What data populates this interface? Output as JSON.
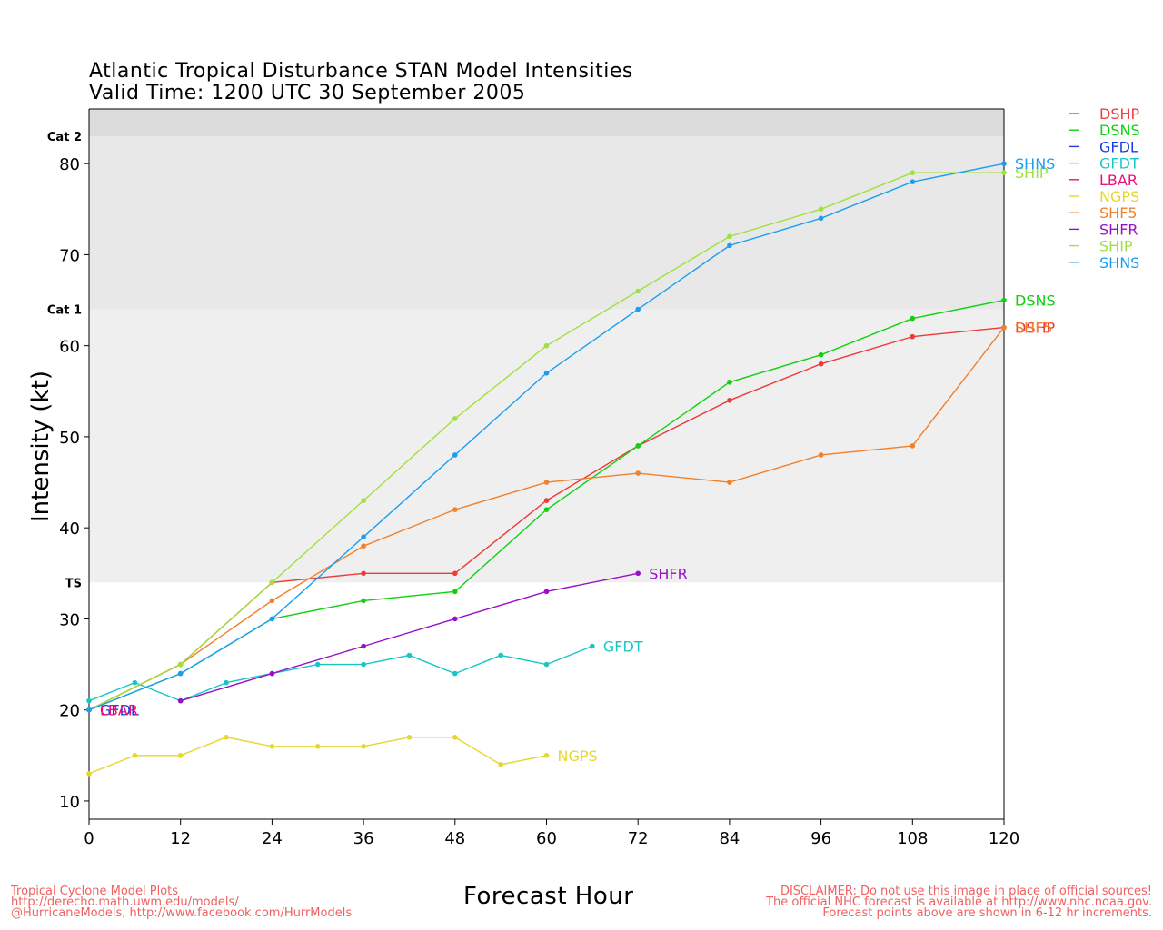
{
  "title_line1": "Atlantic Tropical Disturbance STAN Model Intensities",
  "title_line2": "Valid Time: 1200 UTC 30 September 2005",
  "footer_left": [
    "Tropical Cyclone Model Plots",
    "http://derecho.math.uwm.edu/models/",
    "@HurricaneModels, http://www.facebook.com/HurrModels"
  ],
  "footer_right": [
    "DISCLAIMER: Do not use this image in place of official sources!",
    "The official NHC forecast is available at http://www.nhc.noaa.gov.",
    "Forecast points above are shown in 6-12 hr increments."
  ],
  "chart_data": {
    "type": "line",
    "xlabel": "Forecast Hour",
    "ylabel": "Intensity (kt)",
    "xlim": [
      0,
      120
    ],
    "ylim": [
      8,
      86
    ],
    "xticks": [
      0,
      12,
      24,
      36,
      48,
      60,
      72,
      84,
      96,
      108,
      120
    ],
    "yticks": [
      10,
      20,
      30,
      40,
      50,
      60,
      70,
      80
    ],
    "bands": [
      {
        "label": "TS",
        "from": 34,
        "to": 64,
        "color": "#efefef"
      },
      {
        "label": "Cat 1",
        "from": 64,
        "to": 83,
        "color": "#e8e8e8"
      },
      {
        "label": "Cat 2",
        "from": 83,
        "to": 86,
        "color": "#dcdcdc"
      }
    ],
    "legend_position": "right, outside plot",
    "series": [
      {
        "name": "DSHP",
        "color": "#ee3a3a",
        "x": [
          0,
          12,
          24,
          36,
          48,
          60,
          72,
          84,
          96,
          108,
          120
        ],
        "y": [
          20,
          25,
          34,
          35,
          35,
          43,
          49,
          54,
          58,
          61,
          62
        ]
      },
      {
        "name": "DSNS",
        "color": "#10d010",
        "x": [
          0,
          12,
          24,
          36,
          48,
          60,
          72,
          84,
          96,
          108,
          120
        ],
        "y": [
          20,
          24,
          30,
          32,
          33,
          42,
          49,
          56,
          59,
          63,
          65
        ]
      },
      {
        "name": "GFDL",
        "color": "#1a3ee0",
        "x": [
          0
        ],
        "y": [
          20
        ]
      },
      {
        "name": "GFDT",
        "color": "#18c6c6",
        "x": [
          0,
          6,
          12,
          18,
          24,
          30,
          36,
          42,
          48,
          54,
          60,
          66
        ],
        "y": [
          21,
          23,
          21,
          23,
          24,
          25,
          25,
          26,
          24,
          26,
          25,
          27
        ]
      },
      {
        "name": "LBAR",
        "color": "#e8127a",
        "x": [
          0
        ],
        "y": [
          20
        ]
      },
      {
        "name": "NGPS",
        "color": "#e6d630",
        "x": [
          0,
          6,
          12,
          18,
          24,
          30,
          36,
          42,
          48,
          54,
          60
        ],
        "y": [
          13,
          15,
          15,
          17,
          16,
          16,
          16,
          17,
          17,
          14,
          15
        ]
      },
      {
        "name": "SHF5",
        "color": "#f0802a",
        "x": [
          0,
          12,
          24,
          36,
          48,
          60,
          72,
          84,
          96,
          108,
          120
        ],
        "y": [
          20,
          25,
          32,
          38,
          42,
          45,
          46,
          45,
          48,
          49,
          62
        ]
      },
      {
        "name": "SHFR",
        "color": "#9a10c8",
        "x": [
          12,
          24,
          36,
          48,
          60,
          72
        ],
        "y": [
          21,
          24,
          27,
          30,
          33,
          35
        ]
      },
      {
        "name": "SHIP",
        "color": "#a0e040",
        "x": [
          0,
          12,
          24,
          36,
          48,
          60,
          72,
          84,
          96,
          108,
          120
        ],
        "y": [
          20,
          25,
          34,
          43,
          52,
          60,
          66,
          72,
          75,
          79,
          79
        ]
      },
      {
        "name": "SHNS",
        "color": "#1a9ef0",
        "x": [
          0,
          12,
          24,
          36,
          48,
          60,
          72,
          84,
          96,
          108,
          120
        ],
        "y": [
          20,
          24,
          30,
          39,
          48,
          57,
          64,
          71,
          74,
          78,
          80
        ]
      }
    ]
  }
}
